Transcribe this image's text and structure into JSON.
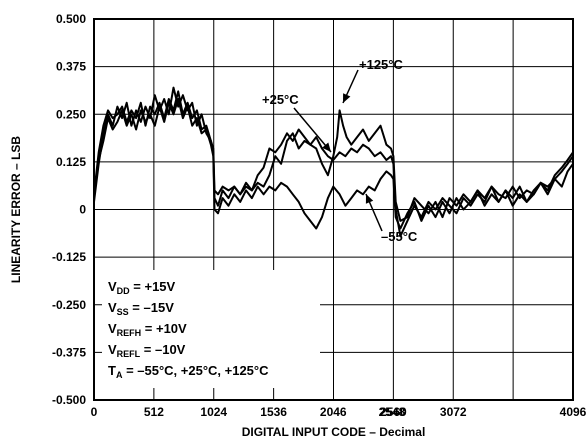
{
  "chart_data": {
    "type": "line",
    "xlabel": "DIGITAL INPUT CODE – Decimal",
    "ylabel": "LINEARITY ERROR – LSB",
    "xlim": [
      0,
      4096
    ],
    "ylim": [
      -0.5,
      0.5
    ],
    "grid": true,
    "x_ticks": [
      "0",
      "512",
      "1024",
      "1536",
      "2046",
      "2548",
      "2560",
      "3072",
      "4096"
    ],
    "x_tick_values": [
      0,
      512,
      1024,
      1536,
      2046,
      2548,
      2560,
      3072,
      4096
    ],
    "x_grid": [
      0,
      512,
      1024,
      1536,
      2048,
      2560,
      3072,
      3584,
      4096
    ],
    "y_ticks": [
      "0.500",
      "0.375",
      "0.250",
      "0.125",
      "0",
      "-0.125",
      "-0.250",
      "-0.375",
      "-0.500"
    ],
    "y_tick_values": [
      0.5,
      0.375,
      0.25,
      0.125,
      0,
      -0.125,
      -0.25,
      -0.375,
      -0.5
    ],
    "series": [
      {
        "name": "+125°C",
        "x": [
          0,
          40,
          80,
          120,
          160,
          200,
          240,
          280,
          320,
          360,
          400,
          440,
          480,
          520,
          560,
          600,
          640,
          680,
          720,
          760,
          800,
          840,
          880,
          920,
          960,
          1000,
          1020,
          1030,
          1060,
          1100,
          1150,
          1200,
          1250,
          1300,
          1350,
          1400,
          1450,
          1500,
          1550,
          1600,
          1650,
          1700,
          1750,
          1800,
          1850,
          1900,
          1950,
          2000,
          2046,
          2080,
          2100,
          2130,
          2160,
          2200,
          2250,
          2300,
          2350,
          2400,
          2450,
          2500,
          2540,
          2560,
          2580,
          2620,
          2680,
          2740,
          2800,
          2860,
          2920,
          2980,
          3040,
          3100,
          3160,
          3220,
          3280,
          3340,
          3400,
          3460,
          3520,
          3580,
          3640,
          3700,
          3760,
          3820,
          3880,
          3940,
          4000,
          4050,
          4096
        ],
        "y": [
          0.02,
          0.12,
          0.2,
          0.25,
          0.22,
          0.27,
          0.24,
          0.28,
          0.22,
          0.26,
          0.23,
          0.27,
          0.24,
          0.3,
          0.26,
          0.29,
          0.25,
          0.32,
          0.27,
          0.3,
          0.26,
          0.28,
          0.22,
          0.25,
          0.2,
          0.18,
          0.16,
          0.05,
          0.04,
          0.06,
          0.05,
          0.06,
          0.04,
          0.06,
          0.05,
          0.07,
          0.06,
          0.09,
          0.14,
          0.12,
          0.18,
          0.2,
          0.16,
          0.18,
          0.17,
          0.16,
          0.12,
          0.09,
          0.14,
          0.19,
          0.26,
          0.22,
          0.19,
          0.17,
          0.19,
          0.21,
          0.18,
          0.2,
          0.22,
          0.17,
          0.16,
          0.14,
          0.02,
          -0.03,
          -0.02,
          0.03,
          0.01,
          -0.01,
          0.02,
          -0.02,
          0.03,
          0.01,
          0.04,
          0.02,
          0.05,
          0.03,
          0.06,
          0.02,
          0.05,
          0.03,
          0.06,
          0.02,
          0.04,
          0.07,
          0.05,
          0.09,
          0.11,
          0.13,
          0.15
        ]
      },
      {
        "name": "+25°C",
        "x": [
          0,
          40,
          80,
          120,
          160,
          200,
          240,
          280,
          320,
          360,
          400,
          440,
          480,
          520,
          560,
          600,
          640,
          680,
          720,
          760,
          800,
          840,
          880,
          920,
          960,
          1000,
          1020,
          1030,
          1060,
          1100,
          1150,
          1200,
          1250,
          1300,
          1350,
          1400,
          1450,
          1500,
          1550,
          1600,
          1650,
          1700,
          1750,
          1800,
          1850,
          1900,
          1950,
          2000,
          2046,
          2100,
          2150,
          2200,
          2250,
          2300,
          2350,
          2400,
          2450,
          2500,
          2540,
          2560,
          2580,
          2620,
          2680,
          2740,
          2800,
          2860,
          2920,
          2980,
          3040,
          3100,
          3160,
          3220,
          3280,
          3340,
          3400,
          3460,
          3520,
          3580,
          3640,
          3700,
          3760,
          3820,
          3880,
          3940,
          4000,
          4050,
          4096
        ],
        "y": [
          0.04,
          0.15,
          0.22,
          0.26,
          0.24,
          0.25,
          0.27,
          0.23,
          0.26,
          0.24,
          0.28,
          0.22,
          0.27,
          0.25,
          0.28,
          0.24,
          0.29,
          0.26,
          0.31,
          0.25,
          0.28,
          0.24,
          0.26,
          0.21,
          0.22,
          0.18,
          0.15,
          0.03,
          0.01,
          0.05,
          0.03,
          0.06,
          0.04,
          0.07,
          0.05,
          0.09,
          0.11,
          0.16,
          0.15,
          0.17,
          0.2,
          0.18,
          0.21,
          0.19,
          0.17,
          0.19,
          0.16,
          0.14,
          0.13,
          0.15,
          0.14,
          0.16,
          0.15,
          0.17,
          0.16,
          0.14,
          0.15,
          0.13,
          0.14,
          0.12,
          0.0,
          -0.07,
          -0.03,
          0.01,
          -0.02,
          0.02,
          0.0,
          0.03,
          0.01,
          -0.01,
          0.03,
          0.01,
          0.04,
          0.02,
          0.06,
          0.04,
          0.03,
          0.06,
          0.03,
          0.05,
          0.04,
          0.07,
          0.06,
          0.08,
          0.1,
          0.12,
          0.14
        ]
      },
      {
        "name": "–55°C",
        "x": [
          0,
          40,
          80,
          120,
          160,
          200,
          240,
          280,
          320,
          360,
          400,
          440,
          480,
          520,
          560,
          600,
          640,
          680,
          720,
          760,
          800,
          840,
          880,
          920,
          960,
          1000,
          1020,
          1030,
          1060,
          1100,
          1150,
          1200,
          1250,
          1300,
          1350,
          1400,
          1450,
          1500,
          1550,
          1600,
          1650,
          1700,
          1750,
          1800,
          1850,
          1900,
          1950,
          2000,
          2046,
          2100,
          2150,
          2200,
          2250,
          2300,
          2350,
          2400,
          2450,
          2500,
          2540,
          2560,
          2580,
          2620,
          2680,
          2740,
          2800,
          2860,
          2920,
          2980,
          3040,
          3100,
          3160,
          3220,
          3280,
          3340,
          3400,
          3460,
          3520,
          3580,
          3640,
          3700,
          3760,
          3820,
          3880,
          3940,
          4000,
          4050,
          4096
        ],
        "y": [
          0.03,
          0.13,
          0.18,
          0.24,
          0.21,
          0.23,
          0.26,
          0.22,
          0.25,
          0.21,
          0.26,
          0.23,
          0.25,
          0.22,
          0.27,
          0.23,
          0.28,
          0.25,
          0.29,
          0.24,
          0.27,
          0.22,
          0.24,
          0.2,
          0.21,
          0.17,
          0.14,
          0.0,
          -0.01,
          0.03,
          0.01,
          0.04,
          0.02,
          0.05,
          0.03,
          0.06,
          0.04,
          0.06,
          0.05,
          0.07,
          0.06,
          0.04,
          0.02,
          -0.01,
          -0.03,
          -0.05,
          -0.02,
          0.03,
          0.06,
          0.04,
          0.01,
          0.03,
          0.05,
          0.04,
          0.06,
          0.05,
          0.08,
          0.1,
          0.09,
          0.08,
          -0.02,
          -0.05,
          -0.01,
          0.02,
          -0.03,
          0.01,
          -0.02,
          0.02,
          -0.01,
          0.03,
          0.0,
          0.02,
          0.05,
          0.01,
          0.04,
          0.02,
          0.05,
          0.01,
          0.04,
          0.02,
          0.05,
          0.07,
          0.04,
          0.08,
          0.06,
          0.1,
          0.12
        ]
      }
    ],
    "annotations": [
      {
        "id": "ann-125",
        "text": "+125°C"
      },
      {
        "id": "ann-25",
        "text": "+25°C"
      },
      {
        "id": "ann-55",
        "text": "–55°C"
      }
    ],
    "conditions": [
      {
        "main": "V",
        "sub": "DD",
        "rest": " = +15V"
      },
      {
        "main": "V",
        "sub": "SS",
        "rest": " = –15V"
      },
      {
        "main": "V",
        "sub": "REFH",
        "rest": " = +10V"
      },
      {
        "main": "V",
        "sub": "REFL",
        "rest": " = –10V"
      },
      {
        "main": "T",
        "sub": "A",
        "rest": " = –55°C, +25°C, +125°C"
      }
    ]
  }
}
